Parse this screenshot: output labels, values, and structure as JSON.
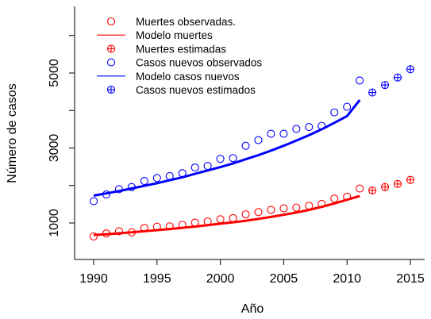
{
  "chart_data": {
    "type": "scatter",
    "xlabel": "Año",
    "ylabel": "Número de casos",
    "xlim": [
      1989.5,
      2015.5
    ],
    "ylim": [
      300,
      6000
    ],
    "x_ticks": [
      1990,
      1995,
      2000,
      2005,
      2010,
      2015
    ],
    "y_ticks": [
      1000,
      3000,
      5000
    ],
    "y_minor_ticks": [
      2000,
      4000,
      6000
    ],
    "grid": false,
    "legend_position": "top-left",
    "colors": {
      "deaths": "#ff0000",
      "cases": "#0000ff"
    },
    "series": [
      {
        "name": "Muertes observadas.",
        "kind": "points",
        "marker": "circle",
        "color": "#ff0000",
        "x": [
          1990,
          1991,
          1992,
          1993,
          1994,
          1995,
          1996,
          1997,
          1998,
          1999,
          2000,
          2001,
          2002,
          2003,
          2004,
          2005,
          2006,
          2007,
          2008,
          2009,
          2010,
          2011
        ],
        "y": [
          640,
          720,
          780,
          750,
          870,
          900,
          910,
          950,
          1010,
          1040,
          1100,
          1130,
          1230,
          1290,
          1350,
          1390,
          1410,
          1460,
          1510,
          1650,
          1700,
          1920
        ]
      },
      {
        "name": "Modelo muertes",
        "kind": "line",
        "color": "#ff0000",
        "x": [
          1990,
          1991,
          1992,
          1993,
          1994,
          1995,
          1996,
          1997,
          1998,
          1999,
          2000,
          2001,
          2002,
          2003,
          2004,
          2005,
          2006,
          2007,
          2008,
          2009,
          2010,
          2011
        ],
        "y": [
          680,
          700,
          725,
          750,
          780,
          810,
          840,
          870,
          905,
          940,
          980,
          1020,
          1060,
          1110,
          1160,
          1220,
          1280,
          1350,
          1430,
          1520,
          1620,
          1720
        ]
      },
      {
        "name": "Muertes estimadas",
        "kind": "points",
        "marker": "circle-plus",
        "color": "#ff0000",
        "x": [
          2012,
          2013,
          2014,
          2015
        ],
        "y": [
          1870,
          1960,
          2040,
          2150
        ]
      },
      {
        "name": "Casos nuevos observados",
        "kind": "points",
        "marker": "circle",
        "color": "#0000ff",
        "x": [
          1990,
          1991,
          1992,
          1993,
          1994,
          1995,
          1996,
          1997,
          1998,
          1999,
          2000,
          2001,
          2002,
          2003,
          2004,
          2005,
          2006,
          2007,
          2008,
          2009,
          2010,
          2011
        ],
        "y": [
          1580,
          1760,
          1900,
          1960,
          2120,
          2200,
          2250,
          2330,
          2480,
          2520,
          2710,
          2730,
          3060,
          3210,
          3380,
          3380,
          3510,
          3560,
          3590,
          3950,
          4100,
          4800
        ]
      },
      {
        "name": "Modelo casos nuevos",
        "kind": "line",
        "color": "#0000ff",
        "x": [
          1990,
          1991,
          1992,
          1993,
          1994,
          1995,
          1996,
          1997,
          1998,
          1999,
          2000,
          2001,
          2002,
          2003,
          2004,
          2005,
          2006,
          2007,
          2008,
          2009,
          2010,
          2011
        ],
        "y": [
          1730,
          1790,
          1850,
          1920,
          1990,
          2060,
          2140,
          2220,
          2310,
          2400,
          2490,
          2590,
          2700,
          2810,
          2930,
          3060,
          3200,
          3340,
          3500,
          3670,
          3850,
          4280
        ]
      },
      {
        "name": "Casos nuevos estimados",
        "kind": "points",
        "marker": "circle-plus",
        "color": "#0000ff",
        "x": [
          2012,
          2013,
          2014,
          2015
        ],
        "y": [
          4480,
          4680,
          4880,
          5100
        ]
      }
    ]
  }
}
